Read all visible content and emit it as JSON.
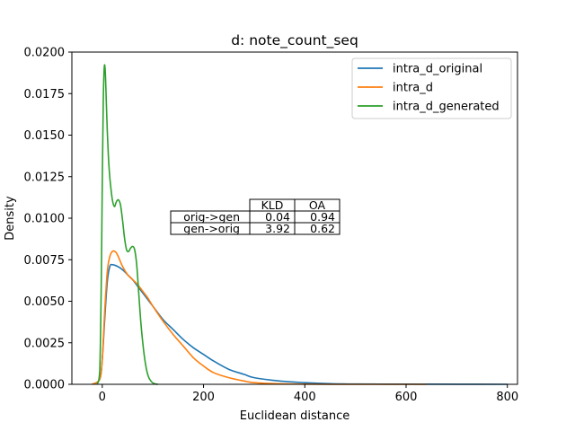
{
  "chart_data": {
    "type": "line",
    "title": "d: note_count_seq",
    "xlabel": "Euclidean distance",
    "ylabel": "Density",
    "xlim": [
      -60,
      820
    ],
    "ylim": [
      0,
      0.02
    ],
    "xticks": [
      0,
      200,
      400,
      600,
      800
    ],
    "yticks": [
      0.0,
      0.0025,
      0.005,
      0.0075,
      0.01,
      0.0125,
      0.015,
      0.0175,
      0.02
    ],
    "xtick_labels": [
      "0",
      "200",
      "400",
      "600",
      "800"
    ],
    "ytick_labels": [
      "0.0000",
      "0.0025",
      "0.0050",
      "0.0075",
      "0.0100",
      "0.0125",
      "0.0150",
      "0.0175",
      "0.0200"
    ],
    "grid": false,
    "legend_position": "top-right",
    "series": [
      {
        "name": "intra_d_original",
        "color": "#1f77b4",
        "x": [
          -20,
          -5,
          0,
          5,
          10,
          15,
          20,
          30,
          40,
          50,
          60,
          70,
          80,
          90,
          100,
          120,
          140,
          160,
          180,
          200,
          220,
          250,
          280,
          300,
          350,
          400,
          450,
          500,
          600,
          700,
          800
        ],
        "y": [
          0,
          0.0003,
          0.0015,
          0.004,
          0.0062,
          0.0071,
          0.0072,
          0.0071,
          0.0069,
          0.0066,
          0.0063,
          0.0059,
          0.0055,
          0.0051,
          0.0047,
          0.0039,
          0.0033,
          0.0027,
          0.0022,
          0.0018,
          0.0014,
          0.0009,
          0.0006,
          0.0004,
          0.0002,
          0.0001,
          4e-05,
          2e-05,
          1e-05,
          5e-06,
          0.0
        ]
      },
      {
        "name": "intra_d",
        "color": "#ff7f0e",
        "x": [
          -20,
          -5,
          0,
          5,
          10,
          15,
          20,
          25,
          30,
          40,
          50,
          60,
          70,
          80,
          90,
          100,
          120,
          140,
          160,
          180,
          200,
          220,
          250,
          280,
          300,
          350,
          400,
          450,
          500,
          600,
          640
        ],
        "y": [
          0,
          0.0003,
          0.0015,
          0.0045,
          0.0068,
          0.0077,
          0.008,
          0.008,
          0.0078,
          0.0071,
          0.0066,
          0.0063,
          0.006,
          0.0056,
          0.0052,
          0.0047,
          0.0038,
          0.003,
          0.0023,
          0.0016,
          0.0011,
          0.0007,
          0.0004,
          0.0002,
          0.0001,
          3e-05,
          1e-05,
          0.0,
          0.0,
          0.0,
          0.0
        ]
      },
      {
        "name": "intra_d_generated",
        "color": "#2ca02c",
        "x": [
          -10,
          -5,
          -2,
          0,
          2,
          4,
          6,
          8,
          10,
          12,
          14,
          16,
          20,
          24,
          28,
          32,
          36,
          40,
          44,
          48,
          52,
          56,
          60,
          64,
          68,
          72,
          76,
          80,
          84,
          88,
          92,
          96,
          100,
          105,
          110
        ],
        "y": [
          0,
          0.0008,
          0.006,
          0.012,
          0.017,
          0.0191,
          0.0188,
          0.017,
          0.0152,
          0.0138,
          0.0128,
          0.0121,
          0.0111,
          0.0107,
          0.011,
          0.0111,
          0.0108,
          0.0099,
          0.0088,
          0.0081,
          0.008,
          0.0082,
          0.0083,
          0.0081,
          0.0072,
          0.0055,
          0.0038,
          0.0025,
          0.0015,
          0.0008,
          0.0004,
          0.0002,
          8e-05,
          2e-05,
          0.0
        ]
      }
    ],
    "table": {
      "col_headers": [
        "KLD",
        "OA"
      ],
      "rows": [
        {
          "label": "orig->gen",
          "values": [
            "0.04",
            "0.94"
          ]
        },
        {
          "label": "gen->orig",
          "values": [
            "3.92",
            "0.62"
          ]
        }
      ]
    }
  }
}
